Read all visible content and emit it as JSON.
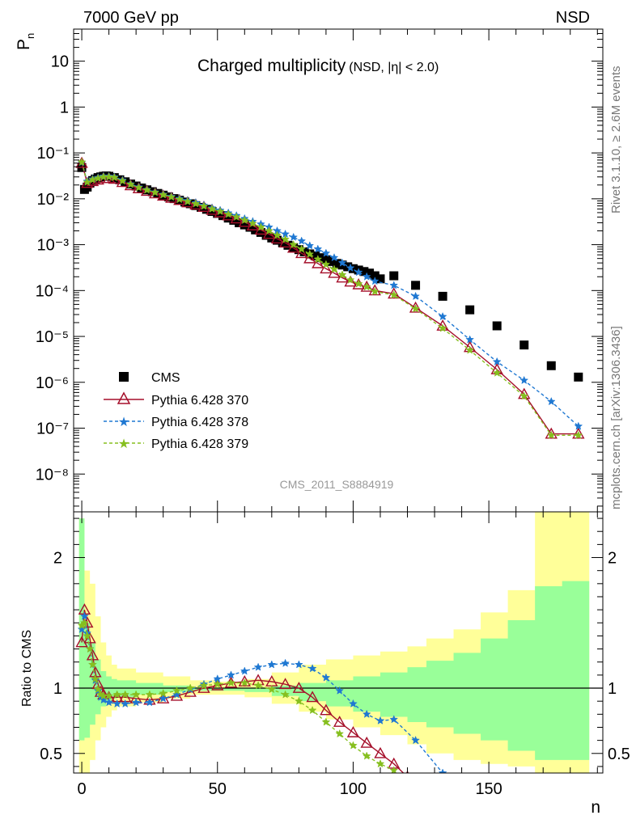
{
  "header": {
    "left_label": "7000 GeV pp",
    "right_label": "NSD"
  },
  "side_labels": {
    "rivet": "Rivet 3.1.10, ≥ 2.6M events",
    "source": "mcplots.cern.ch [arXiv:1306.3436]"
  },
  "colors": {
    "cms": "#000000",
    "p370": "#a50f2a",
    "p378": "#1f78d2",
    "p379": "#86bf1f",
    "band_outer": "#ffff99",
    "band_inner": "#99ff99",
    "side_text": "#777777"
  },
  "chart_data": [
    {
      "type": "scatter",
      "title": "Charged multiplicity",
      "subtitle": "(NSD, |η| < 2.0)",
      "ylabel_main": "P",
      "ylabel_sub": "n",
      "analysis_label": "CMS_2011_S8884919",
      "y_scale": "log",
      "xlim": [
        -3,
        192
      ],
      "ylim": [
        1.5e-09,
        50
      ],
      "y_tick_labels": [
        "10⁻⁸",
        "10⁻⁷",
        "10⁻⁶",
        "10⁻⁵",
        "10⁻⁴",
        "10⁻³",
        "10⁻²",
        "10⁻¹",
        "1",
        "10"
      ],
      "legend_position": "bottom-left",
      "series": [
        {
          "name": "CMS",
          "marker": "square",
          "x": [
            0,
            1,
            2,
            3,
            4,
            5,
            6,
            7,
            8,
            9,
            10,
            12,
            14,
            16,
            18,
            20,
            22,
            24,
            26,
            28,
            30,
            32,
            34,
            36,
            38,
            40,
            42,
            44,
            46,
            48,
            50,
            52,
            54,
            56,
            58,
            60,
            62,
            64,
            66,
            68,
            70,
            72,
            74,
            76,
            78,
            80,
            82,
            84,
            86,
            88,
            90,
            92,
            94,
            96,
            98,
            100,
            102,
            104,
            106,
            108,
            110,
            115,
            123,
            133,
            143,
            153,
            163,
            173,
            183
          ],
          "y": [
            0.048,
            0.016,
            0.018,
            0.022,
            0.025,
            0.027,
            0.029,
            0.03,
            0.031,
            0.0315,
            0.031,
            0.029,
            0.026,
            0.0235,
            0.021,
            0.019,
            0.0172,
            0.0157,
            0.0143,
            0.0131,
            0.012,
            0.011,
            0.0101,
            0.0093,
            0.0085,
            0.0078,
            0.0071,
            0.0065,
            0.0059,
            0.0053,
            0.0048,
            0.0043,
            0.0038,
            0.0034,
            0.003,
            0.0027,
            0.0024,
            0.0021,
            0.00185,
            0.0016,
            0.0014,
            0.00125,
            0.0011,
            0.00097,
            0.00086,
            0.00078,
            0.0007,
            0.00063,
            0.00057,
            0.00052,
            0.00047,
            0.00043,
            0.00039,
            0.00036,
            0.00033,
            0.0003,
            0.00028,
            0.00026,
            0.00024,
            0.00021,
            0.00018,
            0.00021,
            0.00013,
            7.5e-05,
            3.8e-05,
            1.7e-05,
            6.5e-06,
            2.3e-06,
            1.3e-06
          ]
        },
        {
          "name": "Pythia 6.428 370",
          "marker": "triangle-open",
          "line": "solid",
          "x": [
            0,
            2,
            4,
            6,
            8,
            10,
            12,
            15,
            18,
            21,
            24,
            27,
            30,
            33,
            36,
            39,
            42,
            45,
            48,
            51,
            54,
            57,
            60,
            63,
            66,
            69,
            72,
            75,
            78,
            81,
            84,
            87,
            90,
            93,
            96,
            99,
            102,
            105,
            108,
            115,
            123,
            133,
            143,
            153,
            163,
            173,
            183
          ],
          "y": [
            0.06,
            0.022,
            0.024,
            0.026,
            0.028,
            0.028,
            0.027,
            0.023,
            0.0195,
            0.0168,
            0.0148,
            0.013,
            0.0116,
            0.0104,
            0.0093,
            0.0083,
            0.0074,
            0.0066,
            0.0057,
            0.005,
            0.0043,
            0.0037,
            0.0031,
            0.0026,
            0.0021,
            0.0017,
            0.00135,
            0.0011,
            0.00085,
            0.00065,
            0.0005,
            0.00039,
            0.0003,
            0.00024,
            0.00019,
            0.000155,
            0.000135,
            0.00012,
            0.0001,
            8.5e-05,
            4.2e-05,
            1.7e-05,
            5.8e-06,
            1.9e-06,
            5.5e-07,
            7.5e-08,
            7.5e-08
          ]
        },
        {
          "name": "Pythia 6.428 378",
          "marker": "star",
          "line": "dashed",
          "x": [
            0,
            2,
            4,
            6,
            8,
            10,
            12,
            15,
            18,
            21,
            24,
            27,
            30,
            33,
            36,
            39,
            42,
            45,
            48,
            51,
            54,
            57,
            60,
            63,
            66,
            69,
            72,
            75,
            78,
            81,
            84,
            87,
            90,
            93,
            96,
            99,
            102,
            105,
            108,
            115,
            123,
            133,
            143,
            153,
            163,
            173,
            183
          ],
          "y": [
            0.062,
            0.024,
            0.027,
            0.029,
            0.031,
            0.031,
            0.03,
            0.0255,
            0.021,
            0.018,
            0.0158,
            0.014,
            0.0125,
            0.0112,
            0.0101,
            0.0091,
            0.0082,
            0.0072,
            0.0063,
            0.0056,
            0.0049,
            0.0043,
            0.0037,
            0.0032,
            0.0028,
            0.0024,
            0.002,
            0.0017,
            0.00145,
            0.0012,
            0.00095,
            0.0008,
            0.00065,
            0.00052,
            0.0004,
            0.00031,
            0.00025,
            0.0002,
            0.00016,
            0.00013,
            7.5e-05,
            2.7e-05,
            8.5e-06,
            2.8e-06,
            1.1e-06,
            3.8e-07,
            1.1e-07
          ]
        },
        {
          "name": "Pythia 6.428 379",
          "marker": "star",
          "line": "dashed",
          "x": [
            0,
            2,
            4,
            6,
            8,
            10,
            12,
            15,
            18,
            21,
            24,
            27,
            30,
            33,
            36,
            39,
            42,
            45,
            48,
            51,
            54,
            57,
            60,
            63,
            66,
            69,
            72,
            75,
            78,
            81,
            84,
            87,
            90,
            93,
            96,
            99,
            102,
            105,
            108,
            115,
            123,
            133,
            143,
            153,
            163,
            173,
            183
          ],
          "y": [
            0.063,
            0.023,
            0.026,
            0.028,
            0.03,
            0.03,
            0.029,
            0.0245,
            0.0205,
            0.0175,
            0.0155,
            0.0137,
            0.0122,
            0.0109,
            0.0097,
            0.0087,
            0.0078,
            0.0069,
            0.006,
            0.0053,
            0.0046,
            0.004,
            0.0034,
            0.0029,
            0.0024,
            0.002,
            0.0016,
            0.0013,
            0.001,
            0.0008,
            0.00062,
            0.00048,
            0.00037,
            0.00029,
            0.00022,
            0.00017,
            0.00014,
            0.00012,
            9.5e-05,
            8e-05,
            4e-05,
            1.5e-05,
            5e-06,
            1.6e-06,
            5e-07,
            7e-08,
            7e-08
          ]
        }
      ]
    },
    {
      "type": "line",
      "ylabel": "Ratio to CMS",
      "xlabel": "n",
      "xlim": [
        -3,
        192
      ],
      "ylim": [
        0.35,
        2.35
      ],
      "x_ticks": [
        0,
        50,
        100,
        150
      ],
      "y_ticks": [
        0.5,
        1,
        2
      ],
      "band_edges": [
        -1,
        1,
        3,
        5,
        7,
        9,
        11,
        13,
        20,
        30,
        40,
        50,
        60,
        70,
        80,
        90,
        100,
        110,
        120,
        127,
        137,
        147,
        157,
        167,
        177,
        187
      ],
      "band_outer_up": [
        2.3,
        1.9,
        1.8,
        1.55,
        1.35,
        1.25,
        1.18,
        1.15,
        1.12,
        1.09,
        1.06,
        1.05,
        1.07,
        1.12,
        1.18,
        1.22,
        1.25,
        1.28,
        1.32,
        1.38,
        1.45,
        1.58,
        1.75,
        2.35,
        2.35
      ],
      "band_outer_lo": [
        0.35,
        0.35,
        0.45,
        0.6,
        0.7,
        0.78,
        0.83,
        0.86,
        0.89,
        0.92,
        0.95,
        0.95,
        0.93,
        0.88,
        0.82,
        0.76,
        0.7,
        0.64,
        0.57,
        0.5,
        0.45,
        0.42,
        0.4,
        0.35,
        0.35
      ],
      "band_inner_up": [
        2.3,
        1.5,
        1.35,
        1.22,
        1.13,
        1.09,
        1.07,
        1.06,
        1.04,
        1.02,
        1.0,
        1.0,
        1.0,
        1.02,
        1.04,
        1.06,
        1.09,
        1.12,
        1.16,
        1.21,
        1.27,
        1.38,
        1.52,
        1.78,
        1.82
      ],
      "band_inner_lo": [
        0.6,
        0.62,
        0.72,
        0.8,
        0.86,
        0.9,
        0.92,
        0.93,
        0.95,
        0.97,
        0.98,
        0.98,
        0.97,
        0.94,
        0.9,
        0.86,
        0.82,
        0.78,
        0.74,
        0.7,
        0.65,
        0.6,
        0.52,
        0.45,
        0.45
      ],
      "series": [
        {
          "name": "Pythia 6.428 370",
          "x": [
            0,
            1,
            2,
            3,
            4,
            5,
            6,
            7,
            8,
            10,
            13,
            16,
            20,
            25,
            30,
            35,
            40,
            45,
            50,
            55,
            60,
            65,
            70,
            75,
            80,
            85,
            90,
            95,
            100,
            105,
            110,
            115,
            120
          ],
          "y": [
            1.35,
            1.6,
            1.5,
            1.38,
            1.25,
            1.12,
            1.03,
            0.97,
            0.95,
            0.93,
            0.93,
            0.93,
            0.92,
            0.91,
            0.92,
            0.94,
            0.97,
            1.0,
            1.02,
            1.04,
            1.05,
            1.06,
            1.05,
            1.03,
            1.0,
            0.93,
            0.83,
            0.74,
            0.66,
            0.58,
            0.5,
            0.42,
            0.32
          ]
        },
        {
          "name": "Pythia 6.428 378",
          "x": [
            0,
            1,
            2,
            3,
            4,
            5,
            6,
            7,
            8,
            10,
            13,
            16,
            20,
            25,
            30,
            35,
            40,
            45,
            50,
            55,
            60,
            65,
            70,
            75,
            80,
            85,
            90,
            95,
            100,
            105,
            110,
            115,
            123,
            133
          ],
          "y": [
            1.45,
            1.55,
            1.42,
            1.3,
            1.18,
            1.06,
            0.98,
            0.93,
            0.91,
            0.89,
            0.88,
            0.88,
            0.89,
            0.89,
            0.92,
            0.95,
            0.99,
            1.03,
            1.07,
            1.1,
            1.13,
            1.16,
            1.18,
            1.19,
            1.18,
            1.15,
            1.08,
            0.98,
            0.88,
            0.8,
            0.75,
            0.76,
            0.6,
            0.35
          ]
        },
        {
          "name": "Pythia 6.428 379",
          "x": [
            0,
            1,
            2,
            3,
            4,
            5,
            6,
            7,
            8,
            10,
            13,
            16,
            20,
            25,
            30,
            35,
            40,
            45,
            50,
            55,
            60,
            65,
            70,
            75,
            80,
            85,
            90,
            95,
            100,
            105,
            110,
            115
          ],
          "y": [
            1.48,
            1.5,
            1.4,
            1.3,
            1.18,
            1.07,
            0.99,
            0.95,
            0.94,
            0.94,
            0.95,
            0.95,
            0.95,
            0.95,
            0.96,
            0.98,
            1.0,
            1.02,
            1.03,
            1.04,
            1.04,
            1.02,
            0.99,
            0.95,
            0.9,
            0.83,
            0.74,
            0.65,
            0.56,
            0.48,
            0.42,
            0.37
          ]
        }
      ]
    }
  ]
}
